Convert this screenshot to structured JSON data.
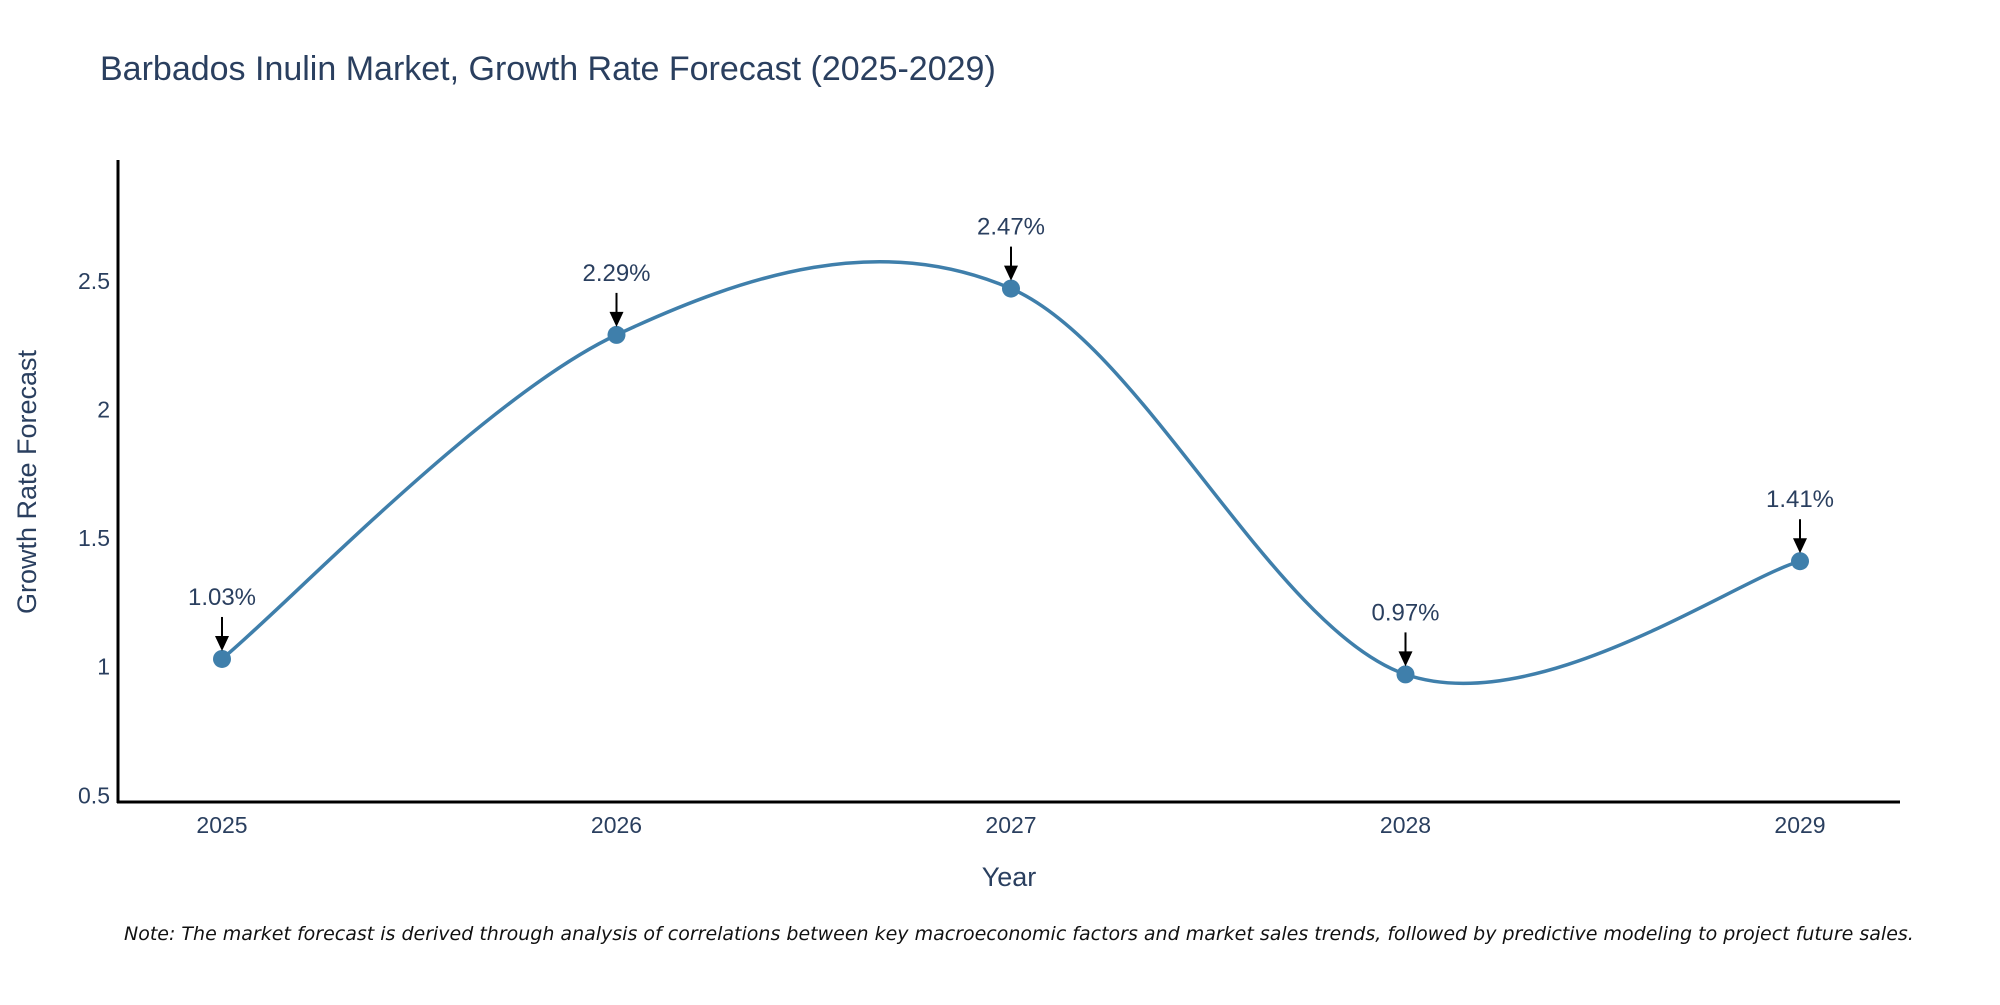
{
  "chart_data": {
    "type": "line",
    "title": "Barbados Inulin Market, Growth Rate Forecast (2025-2029)",
    "xlabel": "Year",
    "ylabel": "Growth Rate Forecast",
    "categories": [
      "2025",
      "2026",
      "2027",
      "2028",
      "2029"
    ],
    "series": [
      {
        "name": "Growth Rate Forecast",
        "values": [
          1.03,
          2.29,
          2.47,
          0.97,
          1.41
        ],
        "labels": [
          "1.03%",
          "2.29%",
          "2.47%",
          "0.97%",
          "1.41%"
        ],
        "color": "#3f7fab"
      }
    ],
    "ylim": [
      0.47,
      2.97
    ],
    "yticks": [
      0.5,
      1,
      1.5,
      2,
      2.5
    ],
    "ytick_labels": [
      "0.5",
      "1",
      "1.5",
      "2",
      "2.5"
    ],
    "grid": false,
    "line_shape": "spline",
    "note": "Note: The market forecast is derived through analysis of correlations between key macroeconomic factors and market sales trends, followed by predictive modeling to project future sales."
  },
  "colors": {
    "text": "#2a3f5f",
    "axis": "#000000",
    "arrow": "#000000",
    "line": "#3f7fab",
    "marker": "#3f7fab"
  }
}
